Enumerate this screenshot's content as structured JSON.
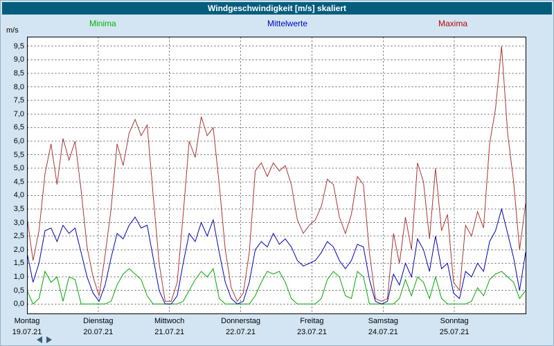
{
  "window": {
    "title": "Windgeschwindigkeit [m/s] skaliert"
  },
  "legend": {
    "minima": {
      "label": "Minima",
      "color": "#00b400"
    },
    "mittelwerte": {
      "label": "Mittelwerte",
      "color": "#0000c0"
    },
    "maxima": {
      "label": "Maxima",
      "color": "#c00000"
    }
  },
  "colors": {
    "window_background": "#d3e5f3",
    "titlebar_background": "#045d7d",
    "plot_background": "#ffffff",
    "grid": "#606060",
    "minima_line": "#00a800",
    "mittelwerte_line": "#0000b0",
    "maxima_line": "#aa3333"
  },
  "scrollbar": {
    "left_arrow": "left",
    "right_arrow": "right"
  },
  "chart_data": {
    "type": "line",
    "title": "Windgeschwindigkeit [m/s] skaliert",
    "ylabel_unit": "m/s",
    "ylim": [
      0,
      9.5
    ],
    "y_tick_step": 0.5,
    "y_ticks": [
      "9,5",
      "9,0",
      "8,5",
      "8,0",
      "7,5",
      "7,0",
      "6,5",
      "6,0",
      "5,5",
      "5,0",
      "4,5",
      "4,0",
      "3,5",
      "3,0",
      "2,5",
      "2,0",
      "1,5",
      "1,0",
      "0,5",
      "0,0"
    ],
    "x_days": [
      {
        "name": "Montag",
        "date": "19.07.21"
      },
      {
        "name": "Dienstag",
        "date": "20.07.21"
      },
      {
        "name": "Mittwoch",
        "date": "21.07.21"
      },
      {
        "name": "Donnerstag",
        "date": "22.07.21"
      },
      {
        "name": "Freitag",
        "date": "23.07.21"
      },
      {
        "name": "Samstag",
        "date": "24.07.21"
      },
      {
        "name": "Sonntag",
        "date": "25.07.21"
      }
    ],
    "points_per_day": 12,
    "grid": "dashed",
    "legend_position": "top",
    "series": [
      {
        "name": "Minima",
        "color": "#00a800",
        "values": [
          0.5,
          0.0,
          0.2,
          1.2,
          0.8,
          1.0,
          0.1,
          1.0,
          0.9,
          0.0,
          0.0,
          0.0,
          0.0,
          0.0,
          0.1,
          0.7,
          1.1,
          1.3,
          1.1,
          0.9,
          0.3,
          0.0,
          0.0,
          0.0,
          0.0,
          0.0,
          0.1,
          0.5,
          0.9,
          1.2,
          1.0,
          1.3,
          0.2,
          0.0,
          0.0,
          0.0,
          0.0,
          0.0,
          0.3,
          0.8,
          1.2,
          1.1,
          1.2,
          0.8,
          0.2,
          0.0,
          0.0,
          0.0,
          0.0,
          0.2,
          0.9,
          1.2,
          1.0,
          0.3,
          0.2,
          1.2,
          1.0,
          0.0,
          0.0,
          0.0,
          0.0,
          0.0,
          0.2,
          0.9,
          0.3,
          1.0,
          0.8,
          0.2,
          1.0,
          0.2,
          0.0,
          0.0,
          0.0,
          0.0,
          0.1,
          0.6,
          0.3,
          0.9,
          1.1,
          1.2,
          1.0,
          0.8,
          0.2,
          0.5
        ]
      },
      {
        "name": "Mittelwerte",
        "color": "#0000b0",
        "values": [
          1.9,
          0.8,
          1.5,
          2.7,
          2.8,
          2.3,
          2.9,
          2.6,
          2.8,
          1.9,
          1.0,
          0.4,
          0.1,
          0.7,
          1.7,
          2.6,
          2.4,
          2.9,
          3.2,
          2.8,
          2.9,
          1.7,
          0.5,
          0.0,
          0.0,
          0.3,
          1.5,
          2.6,
          2.3,
          3.0,
          2.5,
          3.1,
          1.9,
          0.8,
          0.2,
          0.0,
          0.1,
          0.8,
          2.0,
          2.3,
          2.1,
          2.6,
          2.2,
          2.4,
          2.1,
          1.6,
          1.4,
          1.5,
          1.6,
          1.9,
          2.3,
          2.1,
          1.6,
          1.3,
          1.6,
          2.2,
          2.1,
          0.9,
          0.1,
          0.0,
          0.1,
          1.1,
          0.7,
          1.5,
          1.0,
          2.4,
          2.0,
          1.2,
          2.5,
          1.3,
          1.5,
          0.4,
          0.2,
          1.2,
          1.0,
          1.5,
          1.2,
          2.3,
          2.7,
          3.5,
          2.6,
          1.7,
          0.5,
          1.9
        ]
      },
      {
        "name": "Maxima",
        "color": "#aa3333",
        "values": [
          3.2,
          1.6,
          2.7,
          4.8,
          5.9,
          4.4,
          6.1,
          5.3,
          6.0,
          4.2,
          2.1,
          1.0,
          0.3,
          1.8,
          3.5,
          5.9,
          5.1,
          6.3,
          6.8,
          6.2,
          6.6,
          4.0,
          1.5,
          0.1,
          0.1,
          0.8,
          3.3,
          6.0,
          5.4,
          6.9,
          6.2,
          6.5,
          4.4,
          2.0,
          0.6,
          0.1,
          0.4,
          1.9,
          4.9,
          5.2,
          4.7,
          5.2,
          4.9,
          5.1,
          4.4,
          3.1,
          2.6,
          2.9,
          3.1,
          3.6,
          4.6,
          4.4,
          3.2,
          2.6,
          3.3,
          4.7,
          4.4,
          1.9,
          0.2,
          0.1,
          0.2,
          2.6,
          1.5,
          3.2,
          2.0,
          5.2,
          4.5,
          2.4,
          5.0,
          2.7,
          3.3,
          0.8,
          0.5,
          2.9,
          2.5,
          3.4,
          2.8,
          5.9,
          7.2,
          9.5,
          6.3,
          4.5,
          2.0,
          3.7
        ]
      }
    ]
  }
}
